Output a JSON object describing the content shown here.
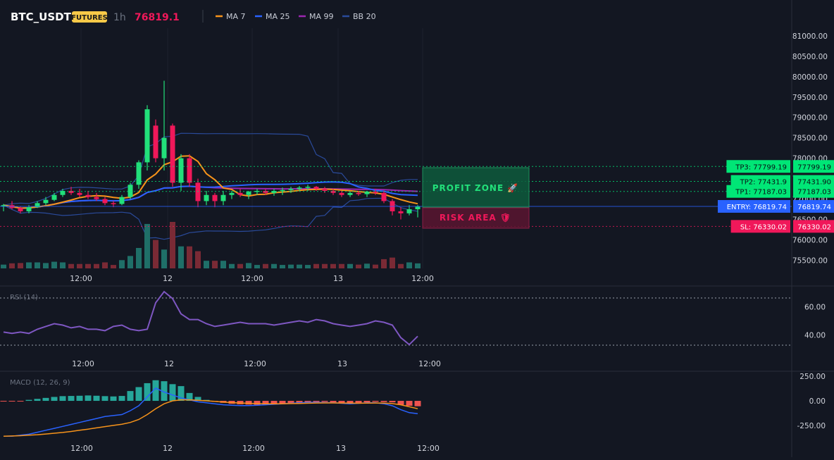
{
  "header": {
    "symbol": "BTC_USDT",
    "badge": "FUTURES",
    "timeframe": "1h",
    "last_price": "76819.1",
    "indicators": [
      {
        "label": "MA 7",
        "color": "#f7931a"
      },
      {
        "label": "MA 25",
        "color": "#2962ff"
      },
      {
        "label": "MA 99",
        "color": "#9c27b0"
      },
      {
        "label": "BB 20",
        "color": "#2a4a9a"
      }
    ]
  },
  "colors": {
    "up": "#26a69a",
    "down": "#ef5350",
    "candle_up": "#22e07a",
    "candle_down": "#f0185a",
    "accent": "#f7c948",
    "price_red": "#f0185a",
    "rsi": "#7e57c2",
    "entry": "#2962ff",
    "tp": "#00e676",
    "sl": "#f0185a"
  },
  "zones": {
    "profit": "PROFIT ZONE 🚀",
    "risk": "RISK AREA 🛡"
  },
  "levels": [
    {
      "id": "tp3",
      "label": "TP3: 77799.19",
      "axis": "77799.19",
      "price": 77799.19,
      "kind": "tp"
    },
    {
      "id": "tp2",
      "label": "TP2: 77431.9",
      "axis": "77431.90",
      "price": 77431.9,
      "kind": "tp"
    },
    {
      "id": "tp1",
      "label": "TP1: 77187.03",
      "axis": "77187.03",
      "price": 77187.03,
      "kind": "tp"
    },
    {
      "id": "entry",
      "label": "ENTRY: 76819.74",
      "axis": "76819.74",
      "price": 76819.74,
      "kind": "entry"
    },
    {
      "id": "sl",
      "label": "SL: 76330.02",
      "axis": "76330.02",
      "price": 76330.02,
      "kind": "sl"
    }
  ],
  "chart_data": [
    {
      "type": "candlestick",
      "panel": "price",
      "ylim": [
        75300,
        81050
      ],
      "y_ticks": [
        "75500.00",
        "76000.00",
        "76500.00",
        "77000.00",
        "77500.00",
        "78000.00",
        "78500.00",
        "79000.00",
        "79500.00",
        "80000.00",
        "80500.00",
        "81000.00"
      ],
      "x_ticks": [
        "12:00",
        "12",
        "12:00",
        "13",
        "12:00"
      ],
      "candles": [
        [
          76820,
          76880,
          76700,
          76850
        ],
        [
          76850,
          76950,
          76750,
          76780
        ],
        [
          76780,
          76820,
          76650,
          76700
        ],
        [
          76700,
          76850,
          76650,
          76800
        ],
        [
          76800,
          76950,
          76780,
          76900
        ],
        [
          76900,
          77050,
          76850,
          76980
        ],
        [
          76980,
          77150,
          76950,
          77100
        ],
        [
          77100,
          77250,
          77050,
          77200
        ],
        [
          77200,
          77300,
          77100,
          77150
        ],
        [
          77150,
          77250,
          77050,
          77100
        ],
        [
          77100,
          77200,
          77000,
          77050
        ],
        [
          77050,
          77150,
          76950,
          77000
        ],
        [
          77000,
          77050,
          76850,
          76900
        ],
        [
          76900,
          76950,
          76800,
          76880
        ],
        [
          76880,
          77100,
          76850,
          77050
        ],
        [
          77050,
          77400,
          77000,
          77350
        ],
        [
          77350,
          77950,
          77250,
          77900
        ],
        [
          77900,
          79300,
          77700,
          79200
        ],
        [
          78800,
          78950,
          77900,
          78000
        ],
        [
          78000,
          79900,
          77700,
          78500
        ],
        [
          78800,
          78850,
          77300,
          77400
        ],
        [
          77400,
          78100,
          77200,
          78000
        ],
        [
          78000,
          78100,
          77300,
          77400
        ],
        [
          77400,
          77500,
          76800,
          76950
        ],
        [
          76950,
          77200,
          76850,
          77100
        ],
        [
          77100,
          77150,
          76800,
          76950
        ],
        [
          76950,
          77200,
          76850,
          77100
        ],
        [
          77100,
          77200,
          77000,
          77150
        ],
        [
          77150,
          77250,
          77050,
          77100
        ],
        [
          77100,
          77200,
          77000,
          77180
        ],
        [
          77180,
          77250,
          77100,
          77200
        ],
        [
          77200,
          77250,
          77100,
          77150
        ],
        [
          77150,
          77250,
          77080,
          77200
        ],
        [
          77200,
          77280,
          77100,
          77220
        ],
        [
          77220,
          77300,
          77150,
          77250
        ],
        [
          77250,
          77320,
          77200,
          77280
        ],
        [
          77280,
          77350,
          77200,
          77300
        ],
        [
          77300,
          77320,
          77200,
          77250
        ],
        [
          77250,
          77300,
          77150,
          77200
        ],
        [
          77200,
          77250,
          77100,
          77150
        ],
        [
          77150,
          77200,
          77050,
          77100
        ],
        [
          77100,
          77180,
          77050,
          77150
        ],
        [
          77150,
          77200,
          77080,
          77120
        ],
        [
          77120,
          77200,
          77050,
          77180
        ],
        [
          77180,
          77250,
          77100,
          77150
        ],
        [
          77150,
          77200,
          76900,
          76950
        ],
        [
          76950,
          77000,
          76600,
          76700
        ],
        [
          76700,
          76800,
          76500,
          76650
        ],
        [
          76650,
          76850,
          76600,
          76750
        ],
        [
          76750,
          76850,
          76550,
          76819
        ]
      ]
    },
    {
      "type": "line",
      "panel": "rsi",
      "title": "RSI (14)",
      "ylim": [
        25,
        72
      ],
      "y_ticks": [
        "40.00",
        "60.00"
      ],
      "x_ticks": [
        "12:00",
        "12",
        "12:00",
        "13",
        "12:00"
      ],
      "values": [
        42,
        41,
        42,
        41,
        44,
        46,
        48,
        47,
        45,
        46,
        44,
        44,
        43,
        46,
        47,
        44,
        43,
        44,
        63,
        71,
        66,
        55,
        51,
        51,
        48,
        46,
        47,
        48,
        49,
        48,
        48,
        48,
        47,
        48,
        49,
        50,
        49,
        51,
        50,
        48,
        47,
        46,
        47,
        48,
        50,
        49,
        47,
        38,
        33,
        39
      ]
    },
    {
      "type": "bar+line",
      "panel": "macd",
      "title": "MACD (12, 26, 9)",
      "ylim": [
        -380,
        280
      ],
      "y_ticks": [
        "250.00",
        "0.00",
        "-250.00"
      ],
      "x_ticks": [
        "12:00",
        "12",
        "12:00",
        "13",
        "12:00"
      ],
      "histogram": [
        -5,
        -3,
        -2,
        10,
        20,
        30,
        40,
        48,
        50,
        52,
        55,
        52,
        48,
        45,
        50,
        100,
        140,
        180,
        210,
        200,
        170,
        150,
        80,
        40,
        10,
        -10,
        -20,
        -30,
        -35,
        -38,
        -40,
        -38,
        -35,
        -30,
        -25,
        -20,
        -15,
        -12,
        -10,
        -15,
        -20,
        -25,
        -20,
        -15,
        -10,
        -12,
        -15,
        -40,
        -50,
        -55
      ],
      "macd": [
        -360,
        -360,
        -350,
        -340,
        -320,
        -300,
        -280,
        -260,
        -240,
        -220,
        -200,
        -180,
        -160,
        -150,
        -140,
        -100,
        -50,
        40,
        130,
        90,
        60,
        30,
        10,
        -10,
        -20,
        -30,
        -40,
        -45,
        -48,
        -48,
        -45,
        -40,
        -35,
        -30,
        -25,
        -20,
        -15,
        -15,
        -18,
        -20,
        -25,
        -30,
        -25,
        -20,
        -20,
        -30,
        -50,
        -90,
        -120,
        -130
      ],
      "signal": [
        -360,
        -358,
        -355,
        -350,
        -345,
        -338,
        -330,
        -322,
        -312,
        -300,
        -288,
        -275,
        -262,
        -250,
        -238,
        -220,
        -190,
        -140,
        -80,
        -30,
        0,
        10,
        10,
        5,
        0,
        -5,
        -12,
        -18,
        -22,
        -25,
        -28,
        -30,
        -30,
        -29,
        -28,
        -26,
        -24,
        -22,
        -21,
        -21,
        -22,
        -23,
        -24,
        -23,
        -22,
        -23,
        -28,
        -40,
        -60,
        -80
      ]
    }
  ]
}
